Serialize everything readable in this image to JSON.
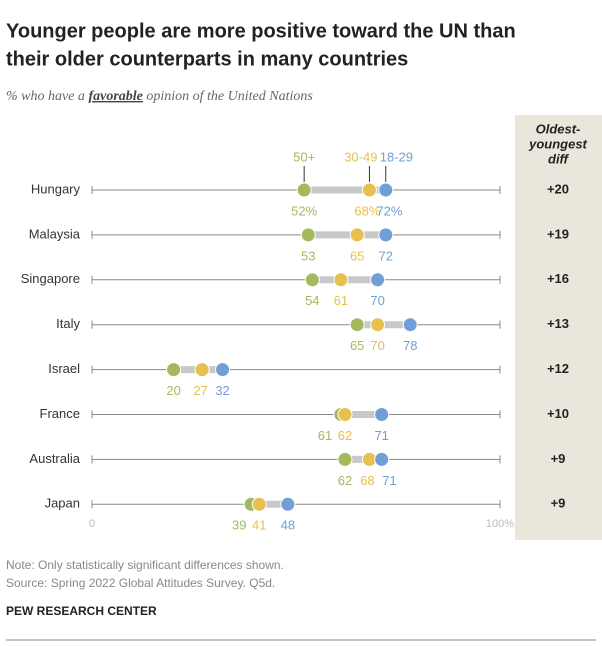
{
  "chart_data": {
    "type": "dot",
    "title": [
      "Younger people are more positive toward the UN than",
      "their older counterparts in many countries"
    ],
    "subtitle": [
      "% who have a ",
      "favorable",
      " opinion of the United Nations"
    ],
    "categories": [
      "Hungary",
      "Malaysia",
      "Singapore",
      "Italy",
      "Israel",
      "France",
      "Australia",
      "Japan"
    ],
    "series": [
      {
        "name": "50+",
        "color": "#a3b95c",
        "values": [
          52,
          53,
          54,
          65,
          20,
          61,
          62,
          39
        ],
        "value_labels": [
          "52%",
          "53",
          "54",
          "65",
          "20",
          "61",
          "62",
          "39"
        ]
      },
      {
        "name": "30-49",
        "color": "#e8c04f",
        "values": [
          68,
          65,
          61,
          70,
          27,
          62,
          68,
          41
        ],
        "value_labels": [
          "68%",
          "65",
          "61",
          "70",
          "27",
          "62",
          "68",
          "41"
        ]
      },
      {
        "name": "18-29",
        "color": "#6f9fd6",
        "values": [
          72,
          72,
          70,
          78,
          32,
          71,
          71,
          48
        ],
        "value_labels": [
          "72%",
          "72",
          "70",
          "78",
          "32",
          "71",
          "71",
          "48"
        ]
      }
    ],
    "diff_header": [
      "Oldest-",
      "youngest",
      "diff"
    ],
    "diff": [
      "+20",
      "+19",
      "+16",
      "+13",
      "+12",
      "+10",
      "+9",
      "+9"
    ],
    "xlim": [
      0,
      100
    ],
    "xticks": [
      0,
      {
        "value": 100,
        "label": "100%"
      }
    ],
    "note": "Note: Only statistically significant differences shown.",
    "source": "Source: Spring 2022 Global Attitudes Survey. Q5d.",
    "credit": "PEW RESEARCH CENTER"
  }
}
